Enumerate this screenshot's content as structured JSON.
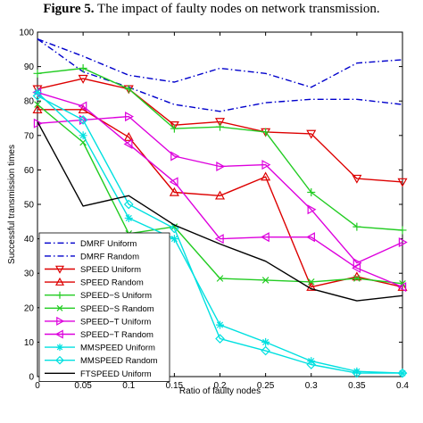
{
  "figure": {
    "label": "Figure 5.",
    "caption": "The impact of faulty nodes on network transmission."
  },
  "chart_data": {
    "type": "line",
    "title": "Figure 5. The impact of faulty nodes on network transmission.",
    "xlabel": "Ratio of faulty nodes",
    "ylabel": "Successful transmission times",
    "xlim": [
      0,
      0.4
    ],
    "ylim": [
      0,
      100
    ],
    "x_ticks": [
      "0",
      "0.05",
      "0.1",
      "0.15",
      "0.2",
      "0.25",
      "0.3",
      "0.35",
      "0.4"
    ],
    "y_ticks": [
      "0",
      "10",
      "20",
      "30",
      "40",
      "50",
      "60",
      "70",
      "80",
      "90",
      "100"
    ],
    "x": [
      0,
      0.05,
      0.1,
      0.15,
      0.2,
      0.25,
      0.3,
      0.35,
      0.4
    ],
    "grid": false,
    "legend_position": "bottom-left",
    "series": [
      {
        "name": "DMRF Uniform",
        "color": "#0000cc",
        "style": "dashdot",
        "marker": "none",
        "values": [
          98,
          93,
          87.5,
          85.5,
          89.5,
          88,
          84,
          91,
          92
        ]
      },
      {
        "name": "DMRF Random",
        "color": "#0000cc",
        "style": "dashdot",
        "marker": "none",
        "values": [
          98,
          88.5,
          84,
          79,
          77,
          79.5,
          80.5,
          80.5,
          79
        ]
      },
      {
        "name": "SPEED Uniform",
        "color": "#dd0000",
        "style": "solid",
        "marker": "triangle-down",
        "values": [
          83.5,
          86.5,
          83.5,
          73,
          74,
          71,
          70.5,
          57.5,
          56.5
        ]
      },
      {
        "name": "SPEED Random",
        "color": "#dd0000",
        "style": "solid",
        "marker": "triangle-up",
        "values": [
          77.5,
          77.5,
          69.5,
          53.5,
          52.5,
          58,
          26,
          29,
          26
        ]
      },
      {
        "name": "SPEED−S Uniform",
        "color": "#22cc22",
        "style": "solid",
        "marker": "plus",
        "values": [
          88,
          89.5,
          83.5,
          72,
          72.5,
          71,
          53.5,
          43.5,
          42.5
        ]
      },
      {
        "name": "SPEED−S Random",
        "color": "#22cc22",
        "style": "solid",
        "marker": "x",
        "values": [
          79,
          68,
          41.5,
          43.5,
          28.5,
          28,
          27.5,
          28.5,
          27
        ]
      },
      {
        "name": "SPEED−T Uniform",
        "color": "#dd00dd",
        "style": "solid",
        "marker": "triangle-right",
        "values": [
          73.5,
          74.5,
          75.5,
          64,
          61,
          61.5,
          48.5,
          33,
          39
        ]
      },
      {
        "name": "SPEED−T Random",
        "color": "#dd00dd",
        "style": "solid",
        "marker": "triangle-left",
        "values": [
          82.5,
          78.5,
          67.5,
          56.5,
          40,
          40.5,
          40.5,
          31.5,
          26
        ]
      },
      {
        "name": "MMSPEED Uniform",
        "color": "#00e0e0",
        "style": "solid",
        "marker": "star",
        "values": [
          82.5,
          70,
          46,
          40,
          15,
          10,
          4.5,
          1.5,
          1
        ]
      },
      {
        "name": "MMSPEED Random",
        "color": "#00e0e0",
        "style": "solid",
        "marker": "diamond",
        "values": [
          81.5,
          74.5,
          50,
          43,
          11,
          7.5,
          3.5,
          1,
          1
        ]
      },
      {
        "name": "FTSPEED Uniform",
        "color": "#000000",
        "style": "solid",
        "marker": "none",
        "values": [
          74,
          49.5,
          52.5,
          44,
          38.5,
          33.5,
          25.5,
          22,
          23.5
        ]
      }
    ]
  }
}
